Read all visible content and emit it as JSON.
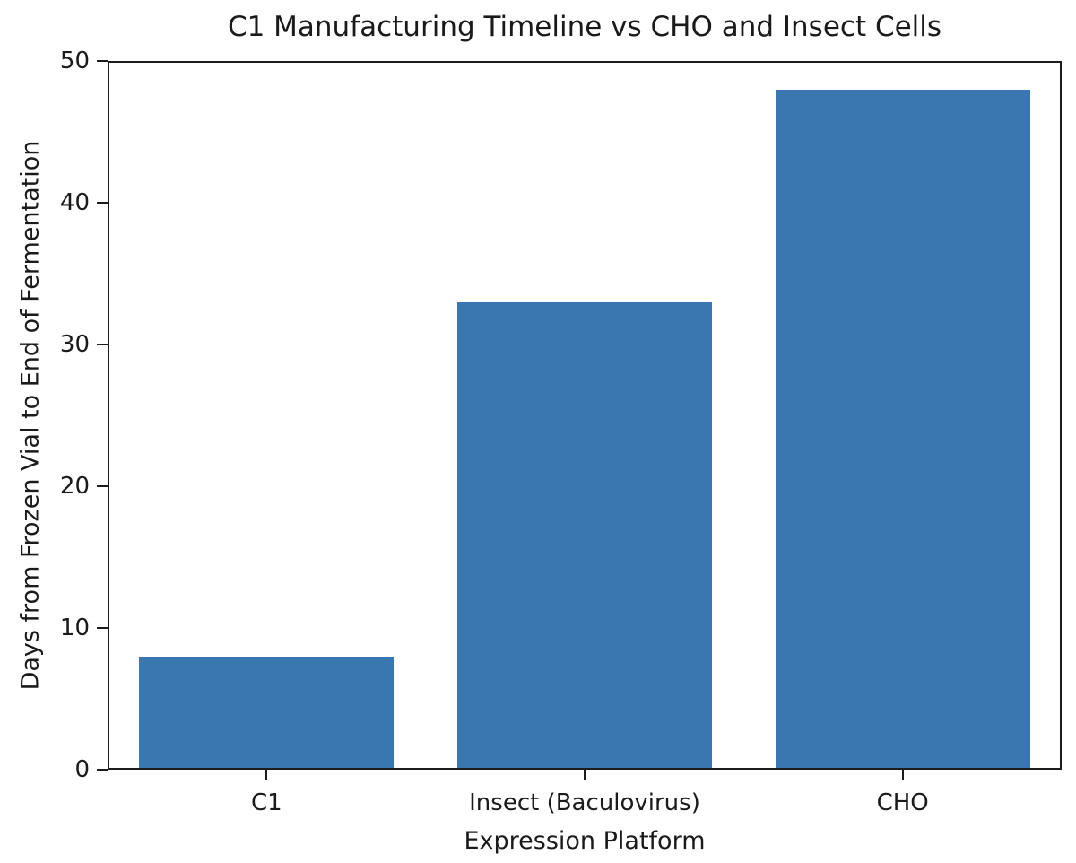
{
  "chart_data": {
    "type": "bar",
    "title": "C1 Manufacturing Timeline vs CHO and Insect Cells",
    "categories": [
      "C1",
      "Insect (Baculovirus)",
      "CHO"
    ],
    "values": [
      8,
      33,
      48
    ],
    "xlabel": "Expression Platform",
    "ylabel": "Days from Frozen Vial to End of Fermentation",
    "yticks": [
      0,
      10,
      20,
      30,
      40,
      50
    ],
    "ylim": [
      0,
      50
    ],
    "bar_color": "#3a76af",
    "bar_width_fraction": 0.8,
    "grid": false,
    "legend": "none",
    "text_color": "#1a1a1a",
    "spine_color": "#1c1c1c",
    "background_color": "#ffffff"
  }
}
